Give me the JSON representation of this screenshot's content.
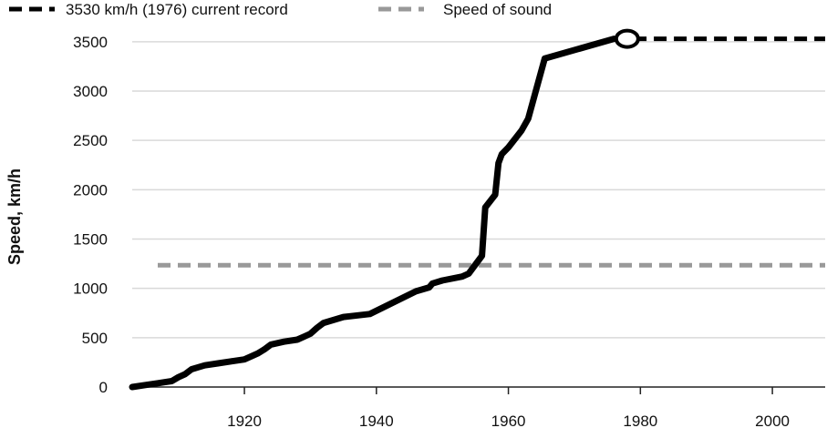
{
  "chart_data": {
    "type": "line",
    "title": "",
    "xlabel": "",
    "ylabel": "Speed, km/h",
    "xlim": [
      1903,
      2008
    ],
    "ylim": [
      0,
      3600
    ],
    "x_ticks": [
      1920,
      1940,
      1960,
      1980,
      2000
    ],
    "y_ticks": [
      0,
      500,
      1000,
      1500,
      2000,
      2500,
      3000,
      3500
    ],
    "grid": "horizontal",
    "legend_position": "top",
    "colors": {
      "record": "#000000",
      "sound": "#999999",
      "grid": "#d9d9d9"
    },
    "series": [
      {
        "name": "",
        "x": [
          1903,
          1905,
          1907,
          1908,
          1909,
          1910,
          1911,
          1912,
          1913,
          1914,
          1916,
          1918,
          1920,
          1921,
          1922,
          1923,
          1924,
          1926,
          1928,
          1929,
          1930,
          1931,
          1932,
          1935,
          1939,
          1946,
          1948,
          1948.5,
          1950,
          1953,
          1954,
          1956,
          1956.5,
          1958,
          1958.5,
          1959,
          1960,
          1962,
          1963,
          1965.5,
          1976
        ],
        "y": [
          0,
          20,
          40,
          50,
          60,
          100,
          130,
          180,
          200,
          220,
          240,
          260,
          280,
          310,
          340,
          380,
          430,
          460,
          480,
          510,
          540,
          600,
          650,
          710,
          740,
          970,
          1010,
          1050,
          1080,
          1120,
          1150,
          1330,
          1820,
          1950,
          2270,
          2360,
          2430,
          2600,
          2720,
          3330,
          3530
        ]
      }
    ],
    "reference_lines": [
      {
        "name": "3530 km/h (1976) current record",
        "y": 3530,
        "x_from": 1979,
        "style": "dashed"
      },
      {
        "name": "Speed of sound",
        "y": 1235,
        "style": "dashed"
      }
    ],
    "marker": {
      "x": 1978,
      "y": 3530,
      "shape": "open-circle"
    }
  }
}
